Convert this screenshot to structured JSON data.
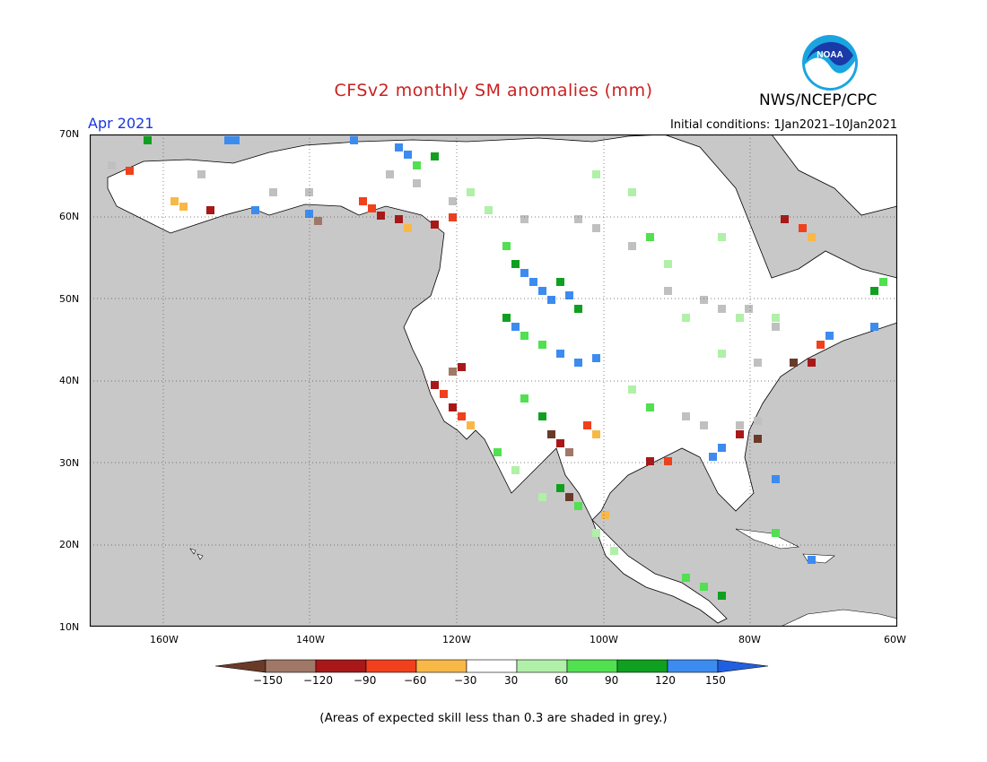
{
  "title": "CFSv2 monthly SM anomalies (mm)",
  "agency": "NWS/NCEP/CPC",
  "logo_text": "NOAA",
  "valid_month": "Apr 2021",
  "initial_conditions": "Initial conditions: 1Jan2021–10Jan2021",
  "note": "(Areas of expected skill less than 0.3 are shaded in grey.)",
  "colors": {
    "title": "#cc1f1f",
    "month": "#1a36e0",
    "ocean": "#c8c8c8",
    "land": "#ffffff",
    "grey_skill": "#c0c0c0"
  },
  "map": {
    "lat_labels": [
      "70N",
      "60N",
      "50N",
      "40N",
      "30N",
      "20N",
      "10N"
    ],
    "lon_labels": [
      "160W",
      "140W",
      "120W",
      "100W",
      "80W",
      "60W"
    ],
    "lon_range": [
      -172,
      -60
    ],
    "lat_range": [
      10,
      70
    ]
  },
  "colorbar": {
    "labels": [
      "−150",
      "−120",
      "−90",
      "−60",
      "−30",
      "30",
      "60",
      "90",
      "120",
      "150"
    ],
    "colors": [
      "#6a3a28",
      "#a07868",
      "#a81818",
      "#f0401c",
      "#f8b848",
      "#ffffff",
      "#b0f0a8",
      "#50e050",
      "#10a020",
      "#3c8cf0",
      "#2060e0"
    ]
  }
}
